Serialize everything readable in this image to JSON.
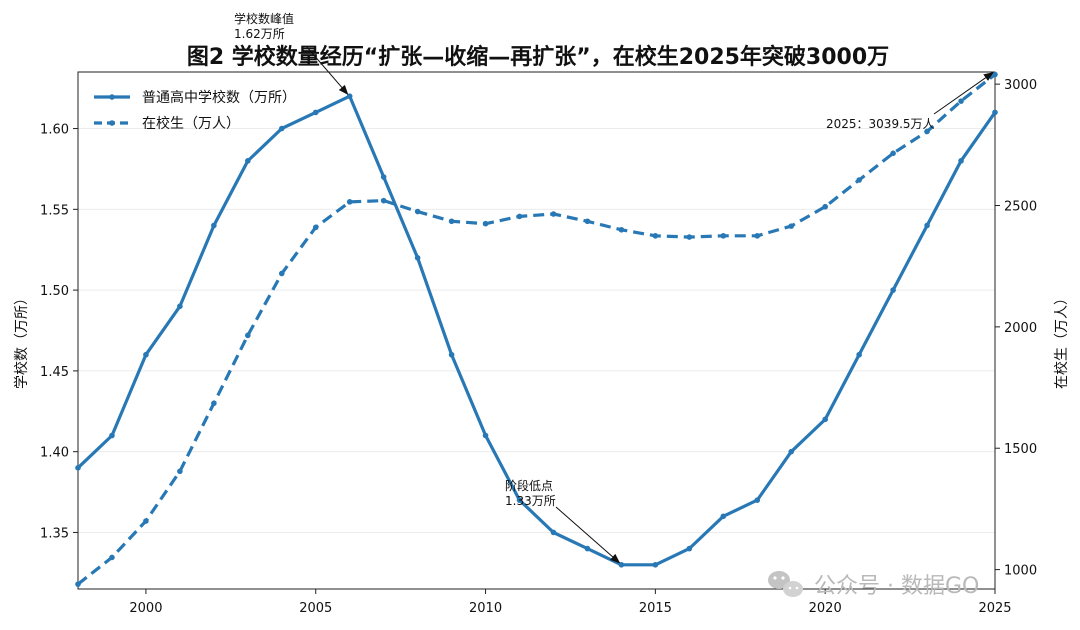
{
  "chart_data": {
    "type": "line",
    "title": "图2 学校数量经历“扩张—收缩—再扩张”，在校生2025年突破3000万",
    "xlabel": "",
    "ylabel_left": "学校数（万所）",
    "ylabel_right": "在校生（万人）",
    "x": [
      1998,
      1999,
      2000,
      2001,
      2002,
      2003,
      2004,
      2005,
      2006,
      2007,
      2008,
      2009,
      2010,
      2011,
      2012,
      2013,
      2014,
      2015,
      2016,
      2017,
      2018,
      2019,
      2020,
      2021,
      2022,
      2023,
      2024,
      2025
    ],
    "xlim": [
      1998,
      2025
    ],
    "x_ticks": [
      2000,
      2005,
      2010,
      2015,
      2020,
      2025
    ],
    "y_left_lim": [
      1.315,
      1.635
    ],
    "y_left_ticks": [
      1.35,
      1.4,
      1.45,
      1.5,
      1.55,
      1.6
    ],
    "y_right_lim": [
      920,
      3050
    ],
    "y_right_ticks": [
      1000,
      1500,
      2000,
      2500,
      3000
    ],
    "grid": "horizontal",
    "legend_position": "top-left",
    "series": [
      {
        "name": "普通高中学校数（万所）",
        "axis": "left",
        "style": "solid",
        "color": "#2878b5",
        "values": [
          1.39,
          1.41,
          1.46,
          1.49,
          1.54,
          1.58,
          1.6,
          1.61,
          1.62,
          1.57,
          1.52,
          1.46,
          1.41,
          1.37,
          1.35,
          1.34,
          1.33,
          1.33,
          1.34,
          1.36,
          1.37,
          1.4,
          1.42,
          1.46,
          1.5,
          1.54,
          1.58,
          1.61
        ]
      },
      {
        "name": "在校生（万人）",
        "axis": "right",
        "style": "dashed",
        "color": "#2878b5",
        "values": [
          940,
          1050,
          1200,
          1405,
          1685,
          1965,
          2220,
          2410,
          2515,
          2520,
          2475,
          2435,
          2425,
          2455,
          2465,
          2435,
          2400,
          2375,
          2370,
          2375,
          2375,
          2415,
          2495,
          2605,
          2715,
          2805,
          2930,
          3039.5
        ]
      }
    ],
    "annotations": [
      {
        "id": "peak",
        "lines": [
          "学校数峰值",
          "1.62万所"
        ],
        "x": 2006,
        "y": 1.62,
        "axis": "left"
      },
      {
        "id": "low",
        "lines": [
          "阶段低点",
          "1.33万所"
        ],
        "x": 2014,
        "y": 1.33,
        "axis": "left"
      },
      {
        "id": "students2025",
        "lines": [
          "2025：3039.5万人"
        ],
        "x": 2025,
        "y": 3039.5,
        "axis": "right"
      }
    ]
  },
  "watermark": {
    "text": "公众号 · 数据GO",
    "icon": "wechat-icon"
  }
}
